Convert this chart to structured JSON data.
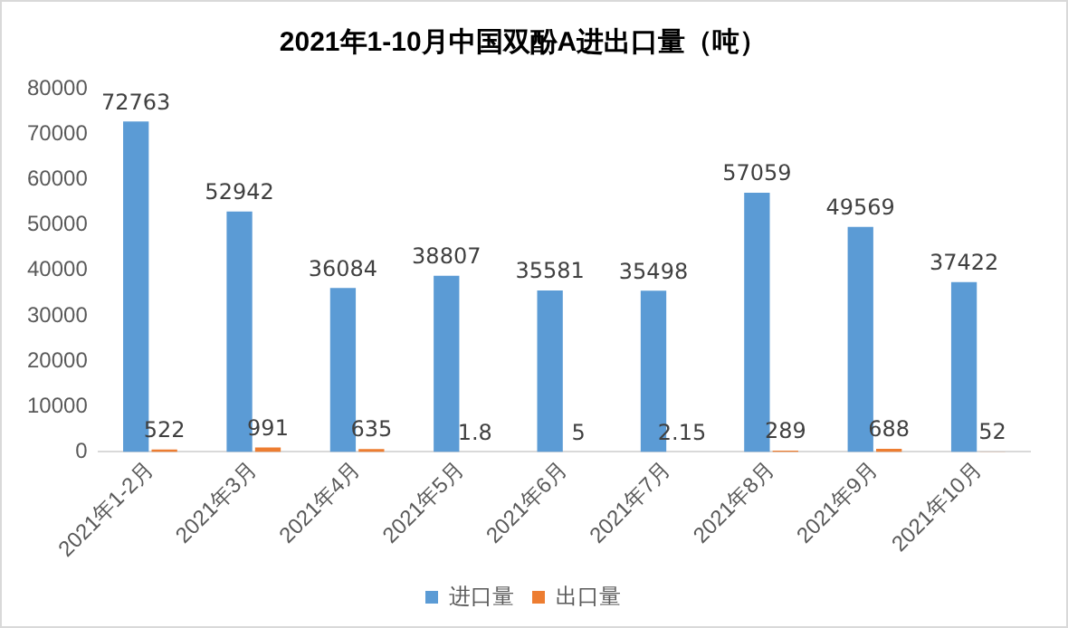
{
  "chart_data": {
    "type": "bar",
    "title": "2021年1-10月中国双酚A进出口量（吨）",
    "categories": [
      "2021年1-2月",
      "2021年3月",
      "2021年4月",
      "2021年5月",
      "2021年6月",
      "2021年7月",
      "2021年8月",
      "2021年9月",
      "2021年10月"
    ],
    "series": [
      {
        "name": "进口量",
        "color": "#5b9bd5",
        "values": [
          72763,
          52942,
          36084,
          38807,
          35581,
          35498,
          57059,
          49569,
          37422
        ]
      },
      {
        "name": "出口量",
        "color": "#ed7d31",
        "values": [
          522,
          991,
          635,
          1.8,
          5,
          2.15,
          289,
          688,
          52
        ]
      }
    ],
    "ylim": [
      0,
      80000
    ],
    "yticks": [
      0,
      10000,
      20000,
      30000,
      40000,
      50000,
      60000,
      70000,
      80000
    ],
    "grid": false,
    "legend": "bottom",
    "data_labels": true
  }
}
